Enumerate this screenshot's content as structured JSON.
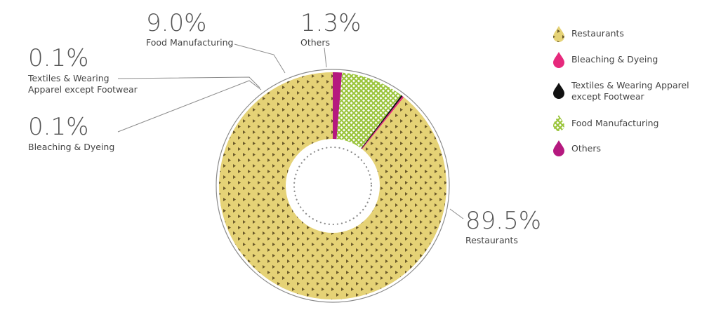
{
  "chart_data": {
    "type": "pie",
    "variant": "donut",
    "categories": [
      "Restaurants",
      "Bleaching & Dyeing",
      "Textiles & Wearing Apparel except Footwear",
      "Food Manufacturing",
      "Others"
    ],
    "values": [
      89.5,
      0.1,
      0.1,
      9.0,
      1.3
    ],
    "value_labels": [
      "89.5%",
      "0.1%",
      "0.1%",
      "9.0%",
      "1.3%"
    ],
    "callout_labels": [
      "Restaurants",
      "Bleaching & Dyeing",
      [
        "Textiles & Wearing",
        "Apparel except Footwear"
      ],
      "Food Manufacturing",
      "Others"
    ],
    "legend": {
      "placement": "right",
      "entries": [
        {
          "label": [
            "Restaurants"
          ],
          "color": "#e5d276",
          "pattern": "triangles"
        },
        {
          "label": [
            "Bleaching & Dyeing"
          ],
          "color": "#e6297c",
          "pattern": "solid"
        },
        {
          "label": [
            "Textiles & Wearing Apparel",
            "except Footwear"
          ],
          "color": "#111111",
          "pattern": "solid"
        },
        {
          "label": [
            "Food Manufacturing"
          ],
          "color": "#9bc53d",
          "pattern": "crosshatch"
        },
        {
          "label": [
            "Others"
          ],
          "color": "#b5197f",
          "pattern": "solid"
        }
      ]
    },
    "colors": {
      "Restaurants": "#e5d276",
      "Bleaching & Dyeing": "#e6297c",
      "Textiles & Wearing Apparel except Footwear": "#111111",
      "Food Manufacturing": "#9bc53d",
      "Others": "#b5197f",
      "ring": "#8c8c8c",
      "leader": "#8c8c8c"
    }
  }
}
